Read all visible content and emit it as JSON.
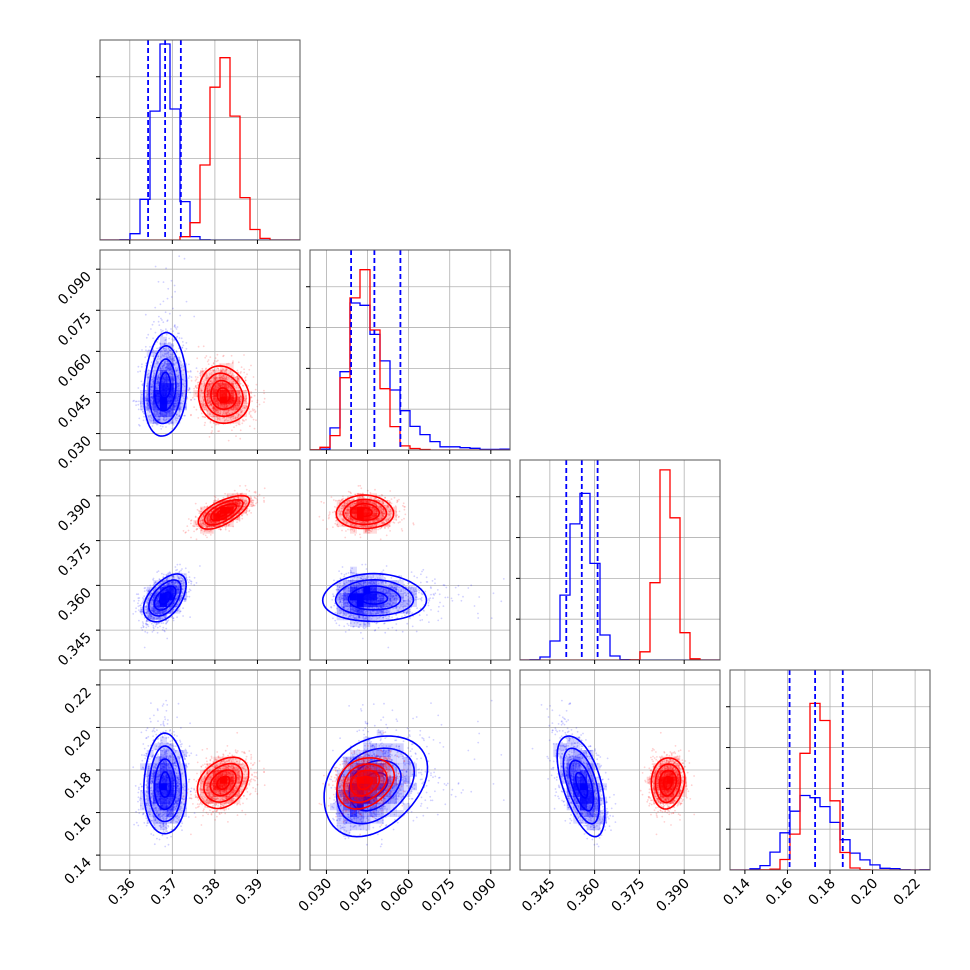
{
  "chart_data": {
    "type": "corner",
    "colors": {
      "primary": "#0000ff",
      "secondary": "#ff0000"
    },
    "grid": true,
    "params": [
      {
        "range": [
          0.353,
          0.4
        ],
        "ticks": [
          0.36,
          0.37,
          0.38,
          0.39
        ],
        "tick_labels": [
          "0.36",
          "0.37",
          "0.38",
          "0.39"
        ]
      },
      {
        "range": [
          0.024,
          0.097
        ],
        "ticks": [
          0.03,
          0.045,
          0.06,
          0.075,
          0.09
        ],
        "tick_labels": [
          "0.030",
          "0.045",
          "0.060",
          "0.075",
          "0.090"
        ]
      },
      {
        "range": [
          0.335,
          0.402
        ],
        "ticks": [
          0.345,
          0.36,
          0.375,
          0.39
        ],
        "tick_labels": [
          "0.345",
          "0.360",
          "0.375",
          "0.390"
        ]
      },
      {
        "range": [
          0.133,
          0.227
        ],
        "ticks": [
          0.14,
          0.16,
          0.18,
          0.2,
          0.22
        ],
        "tick_labels": [
          "0.14",
          "0.16",
          "0.18",
          "0.20",
          "0.22"
        ]
      }
    ],
    "series": [
      {
        "color": "#0000ff",
        "means": [
          0.3683,
          0.0475,
          0.3557,
          0.173
        ],
        "sigmas": [
          0.0025,
          0.008,
          0.004,
          0.011
        ],
        "skew": [
          0,
          1.2,
          0,
          0.5
        ],
        "quantiles": [
          [
            0.3643,
            0.3683,
            0.372
          ],
          [
            0.039,
            0.0475,
            0.057
          ],
          [
            0.3505,
            0.3557,
            0.361
          ],
          [
            0.161,
            0.173,
            0.186
          ]
        ],
        "correlations": [
          [
            0,
            1,
            0.1
          ],
          [
            0,
            2,
            0.5
          ],
          [
            0,
            3,
            0.0
          ],
          [
            1,
            2,
            0.0
          ],
          [
            1,
            3,
            0.3
          ],
          [
            2,
            3,
            -0.55
          ]
        ],
        "hist_peak": [
          1.0,
          0.75,
          0.85,
          0.38
        ]
      },
      {
        "color": "#ff0000",
        "means": [
          0.382,
          0.044,
          0.3845,
          0.174
        ],
        "sigmas": [
          0.003,
          0.005,
          0.0028,
          0.006
        ],
        "skew": [
          0,
          0.3,
          0,
          0
        ],
        "correlations": [
          [
            0,
            1,
            -0.1
          ],
          [
            0,
            2,
            0.65
          ],
          [
            0,
            3,
            0.3
          ],
          [
            1,
            2,
            0.0
          ],
          [
            1,
            3,
            0.25
          ],
          [
            2,
            3,
            0.1
          ]
        ],
        "hist_peak": [
          0.93,
          0.92,
          0.97,
          0.85
        ]
      }
    ]
  }
}
